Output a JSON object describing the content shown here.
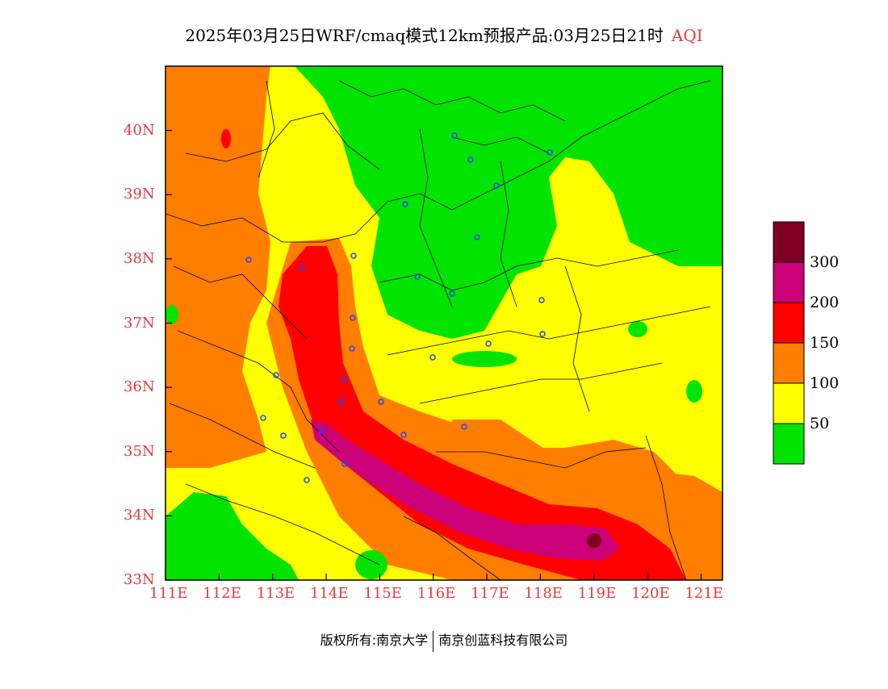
{
  "title": {
    "main": "2025年03月25日WRF/cmaq模式12km预报产品:03月25日21时",
    "suffix": "AQI"
  },
  "map": {
    "lon_range": [
      111,
      121.4
    ],
    "lat_range": [
      33,
      41
    ],
    "x_ticks": [
      "111E",
      "112E",
      "113E",
      "114E",
      "115E",
      "116E",
      "117E",
      "118E",
      "119E",
      "120E",
      "121E"
    ],
    "y_ticks": [
      "33N",
      "34N",
      "35N",
      "36N",
      "37N",
      "38N",
      "39N",
      "40N"
    ]
  },
  "legend": {
    "labels": [
      "300",
      "200",
      "150",
      "100",
      "50"
    ],
    "colors": {
      "green": "#00e400",
      "yellow": "#ffff00",
      "orange": "#ff7e00",
      "red": "#ff0000",
      "purple": "#cc0077",
      "maroon": "#7e0023"
    }
  },
  "footer": {
    "left": "版权所有:南京大学",
    "right": "南京创蓝科技有限公司"
  }
}
